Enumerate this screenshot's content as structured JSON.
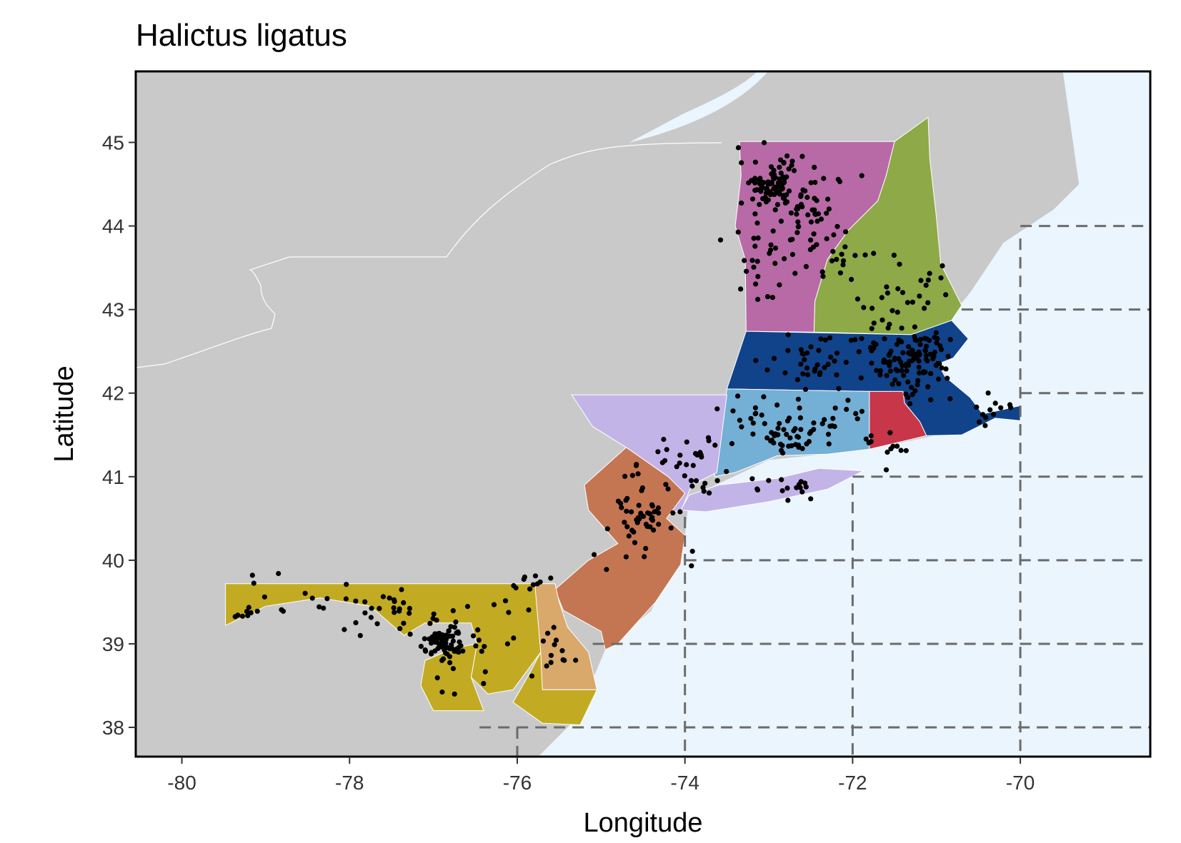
{
  "title": "Halictus ligatus",
  "xlabel": "Longitude",
  "ylabel": "Latitude",
  "xlim": [
    -80.55,
    -68.45
  ],
  "ylim": [
    37.65,
    45.85
  ],
  "x_ticks": [
    {
      "value": -80,
      "label": "-80"
    },
    {
      "value": -78,
      "label": "-78"
    },
    {
      "value": -76,
      "label": "-76"
    },
    {
      "value": -74,
      "label": "-74"
    },
    {
      "value": -72,
      "label": "-72"
    },
    {
      "value": -70,
      "label": "-70"
    }
  ],
  "y_ticks": [
    {
      "value": 38,
      "label": "38"
    },
    {
      "value": 39,
      "label": "39"
    },
    {
      "value": 40,
      "label": "40"
    },
    {
      "value": 41,
      "label": "41"
    },
    {
      "value": 42,
      "label": "42"
    },
    {
      "value": 43,
      "label": "43"
    },
    {
      "value": 44,
      "label": "44"
    },
    {
      "value": 45,
      "label": "45"
    }
  ],
  "colors": {
    "land": "#c9c9c9",
    "water": "#eaf5fd",
    "grid": "#6b6b6b",
    "point": "#000000",
    "vermont": "#b76aa6",
    "new_hampshire": "#8ea947",
    "massachusetts": "#11438a",
    "connecticut": "#74afd5",
    "rhode_island": "#c8364a",
    "new_york": "#c3b4e8",
    "new_jersey": "#c47652",
    "delaware": "#d9a86b",
    "maryland": "#c2ab22"
  },
  "regions": [
    {
      "name": "vermont",
      "coords": [
        [
          -73.35,
          45.01
        ],
        [
          -71.5,
          45.01
        ],
        [
          -71.6,
          44.6
        ],
        [
          -71.7,
          44.3
        ],
        [
          -72.05,
          43.95
        ],
        [
          -72.3,
          43.6
        ],
        [
          -72.45,
          43.1
        ],
        [
          -72.46,
          42.73
        ],
        [
          -73.27,
          42.74
        ],
        [
          -73.28,
          43.6
        ],
        [
          -73.4,
          44.0
        ],
        [
          -73.33,
          44.6
        ],
        [
          -73.35,
          45.01
        ]
      ]
    },
    {
      "name": "new-hampshire",
      "coords": [
        [
          -71.5,
          45.01
        ],
        [
          -71.1,
          45.3
        ],
        [
          -71.08,
          44.8
        ],
        [
          -71.0,
          44.1
        ],
        [
          -70.95,
          43.55
        ],
        [
          -70.7,
          43.05
        ],
        [
          -70.82,
          42.87
        ],
        [
          -71.3,
          42.7
        ],
        [
          -72.46,
          42.73
        ],
        [
          -72.45,
          43.1
        ],
        [
          -72.3,
          43.6
        ],
        [
          -72.05,
          43.95
        ],
        [
          -71.7,
          44.3
        ],
        [
          -71.6,
          44.6
        ],
        [
          -71.5,
          45.01
        ]
      ]
    },
    {
      "name": "massachusetts",
      "coords": [
        [
          -73.5,
          42.05
        ],
        [
          -73.27,
          42.74
        ],
        [
          -71.3,
          42.7
        ],
        [
          -70.82,
          42.87
        ],
        [
          -70.62,
          42.65
        ],
        [
          -70.8,
          42.42
        ],
        [
          -70.98,
          42.35
        ],
        [
          -70.9,
          42.2
        ],
        [
          -70.6,
          41.95
        ],
        [
          -70.45,
          41.75
        ],
        [
          -70.0,
          41.85
        ],
        [
          -70.0,
          41.67
        ],
        [
          -70.3,
          41.7
        ],
        [
          -70.7,
          41.5
        ],
        [
          -71.12,
          41.49
        ],
        [
          -71.2,
          41.66
        ],
        [
          -71.38,
          41.88
        ],
        [
          -71.4,
          42.02
        ],
        [
          -71.8,
          42.02
        ],
        [
          -73.5,
          42.05
        ]
      ]
    },
    {
      "name": "connecticut",
      "coords": [
        [
          -73.5,
          42.05
        ],
        [
          -71.8,
          42.02
        ],
        [
          -71.8,
          41.33
        ],
        [
          -72.3,
          41.27
        ],
        [
          -72.9,
          41.25
        ],
        [
          -73.4,
          41.05
        ],
        [
          -73.65,
          41.0
        ],
        [
          -73.5,
          42.05
        ]
      ]
    },
    {
      "name": "rhode-island",
      "coords": [
        [
          -71.8,
          42.02
        ],
        [
          -71.4,
          42.02
        ],
        [
          -71.38,
          41.88
        ],
        [
          -71.2,
          41.66
        ],
        [
          -71.12,
          41.49
        ],
        [
          -71.5,
          41.4
        ],
        [
          -71.8,
          41.33
        ],
        [
          -71.8,
          42.02
        ]
      ]
    },
    {
      "name": "new-york-hudson",
      "coords": [
        [
          -75.35,
          41.98
        ],
        [
          -73.5,
          41.98
        ],
        [
          -73.62,
          41.05
        ],
        [
          -73.92,
          40.9
        ],
        [
          -74.05,
          40.58
        ],
        [
          -74.22,
          40.6
        ],
        [
          -74.2,
          41.0
        ],
        [
          -74.7,
          41.35
        ],
        [
          -75.1,
          41.6
        ],
        [
          -75.35,
          41.98
        ]
      ]
    },
    {
      "name": "new-york-long-island",
      "coords": [
        [
          -74.05,
          40.6
        ],
        [
          -73.75,
          40.58
        ],
        [
          -73.0,
          40.7
        ],
        [
          -72.3,
          40.85
        ],
        [
          -71.87,
          41.07
        ],
        [
          -72.4,
          41.1
        ],
        [
          -72.9,
          40.98
        ],
        [
          -73.6,
          40.9
        ],
        [
          -73.95,
          40.78
        ],
        [
          -74.05,
          40.6
        ]
      ]
    },
    {
      "name": "new-jersey",
      "coords": [
        [
          -74.7,
          41.35
        ],
        [
          -74.2,
          41.0
        ],
        [
          -74.0,
          40.8
        ],
        [
          -74.22,
          40.5
        ],
        [
          -74.0,
          40.3
        ],
        [
          -74.05,
          39.95
        ],
        [
          -74.35,
          39.5
        ],
        [
          -74.8,
          39.0
        ],
        [
          -74.95,
          38.93
        ],
        [
          -75.0,
          39.15
        ],
        [
          -75.45,
          39.4
        ],
        [
          -75.55,
          39.65
        ],
        [
          -75.15,
          40.0
        ],
        [
          -74.8,
          40.2
        ],
        [
          -75.15,
          40.6
        ],
        [
          -75.2,
          40.9
        ],
        [
          -74.7,
          41.35
        ]
      ]
    },
    {
      "name": "delaware",
      "coords": [
        [
          -75.79,
          39.72
        ],
        [
          -75.55,
          39.72
        ],
        [
          -75.5,
          39.5
        ],
        [
          -75.4,
          39.2
        ],
        [
          -75.15,
          38.9
        ],
        [
          -75.05,
          38.45
        ],
        [
          -75.7,
          38.45
        ],
        [
          -75.79,
          39.72
        ]
      ]
    },
    {
      "name": "maryland-west",
      "coords": [
        [
          -79.48,
          39.72
        ],
        [
          -75.79,
          39.72
        ],
        [
          -75.72,
          38.9
        ],
        [
          -76.05,
          38.45
        ],
        [
          -76.35,
          38.4
        ],
        [
          -76.55,
          38.6
        ],
        [
          -76.48,
          39.0
        ],
        [
          -76.55,
          39.25
        ],
        [
          -77.1,
          39.25
        ],
        [
          -77.35,
          39.1
        ],
        [
          -77.75,
          39.45
        ],
        [
          -78.35,
          39.55
        ],
        [
          -79.0,
          39.45
        ],
        [
          -79.48,
          39.22
        ],
        [
          -79.48,
          39.72
        ]
      ]
    },
    {
      "name": "maryland-south",
      "coords": [
        [
          -76.48,
          39.0
        ],
        [
          -76.55,
          38.6
        ],
        [
          -76.4,
          38.2
        ],
        [
          -77.0,
          38.2
        ],
        [
          -77.15,
          38.5
        ],
        [
          -77.1,
          38.8
        ],
        [
          -76.75,
          38.95
        ],
        [
          -76.48,
          39.0
        ]
      ]
    },
    {
      "name": "maryland-eastern-shore",
      "coords": [
        [
          -75.72,
          38.9
        ],
        [
          -75.7,
          38.45
        ],
        [
          -75.05,
          38.45
        ],
        [
          -75.25,
          38.03
        ],
        [
          -75.7,
          38.05
        ],
        [
          -76.05,
          38.3
        ],
        [
          -75.85,
          38.65
        ],
        [
          -75.72,
          38.9
        ]
      ]
    }
  ],
  "grid_lines": [
    {
      "type": "vertical",
      "value": -76,
      "from": 37.65,
      "to": 38.0
    },
    {
      "type": "vertical",
      "value": -74,
      "from": 37.65,
      "to": 40.52
    },
    {
      "type": "vertical",
      "value": -72,
      "from": 37.65,
      "to": 40.92
    },
    {
      "type": "vertical",
      "value": -70,
      "from": 37.65,
      "to": 43.85
    },
    {
      "type": "horizontal",
      "value": 38,
      "from": -76.45,
      "to": -68.45
    },
    {
      "type": "horizontal",
      "value": 39,
      "from": -75.1,
      "to": -68.45
    },
    {
      "type": "horizontal",
      "value": 40,
      "from": -74.0,
      "to": -68.45
    },
    {
      "type": "horizontal",
      "value": 41,
      "from": -72.0,
      "to": -68.45
    },
    {
      "type": "horizontal",
      "value": 42,
      "from": -70.0,
      "to": -68.45
    },
    {
      "type": "horizontal",
      "value": 43,
      "from": -70.7,
      "to": -68.45
    },
    {
      "type": "horizontal",
      "value": 44,
      "from": -70.0,
      "to": -68.45
    }
  ],
  "clusters": [
    {
      "x": -72.95,
      "y": 44.5,
      "sx": 0.2,
      "sy": 0.15,
      "n": 95
    },
    {
      "x": -72.5,
      "y": 44.2,
      "sx": 0.18,
      "sy": 0.18,
      "n": 30
    },
    {
      "x": -72.9,
      "y": 43.7,
      "sx": 0.3,
      "sy": 0.35,
      "n": 40
    },
    {
      "x": -72.2,
      "y": 43.6,
      "sx": 0.15,
      "sy": 0.2,
      "n": 15
    },
    {
      "x": -71.3,
      "y": 43.2,
      "sx": 0.25,
      "sy": 0.25,
      "n": 20
    },
    {
      "x": -71.7,
      "y": 43.5,
      "sx": 0.35,
      "sy": 0.45,
      "n": 15
    },
    {
      "x": -71.2,
      "y": 42.4,
      "sx": 0.2,
      "sy": 0.2,
      "n": 90
    },
    {
      "x": -72.5,
      "y": 42.4,
      "sx": 0.3,
      "sy": 0.15,
      "n": 35
    },
    {
      "x": -71.6,
      "y": 42.3,
      "sx": 0.2,
      "sy": 0.15,
      "n": 25
    },
    {
      "x": -70.4,
      "y": 41.8,
      "sx": 0.2,
      "sy": 0.1,
      "n": 12
    },
    {
      "x": -72.8,
      "y": 41.45,
      "sx": 0.22,
      "sy": 0.12,
      "n": 35
    },
    {
      "x": -72.3,
      "y": 41.7,
      "sx": 0.2,
      "sy": 0.15,
      "n": 20
    },
    {
      "x": -73.1,
      "y": 41.65,
      "sx": 0.3,
      "sy": 0.2,
      "n": 15
    },
    {
      "x": -71.6,
      "y": 41.4,
      "sx": 0.15,
      "sy": 0.1,
      "n": 12
    },
    {
      "x": -73.9,
      "y": 41.1,
      "sx": 0.25,
      "sy": 0.25,
      "n": 30
    },
    {
      "x": -73.1,
      "y": 40.85,
      "sx": 0.45,
      "sy": 0.08,
      "n": 18
    },
    {
      "x": -74.5,
      "y": 40.5,
      "sx": 0.15,
      "sy": 0.15,
      "n": 30
    },
    {
      "x": -74.6,
      "y": 40.9,
      "sx": 0.25,
      "sy": 0.2,
      "n": 15
    },
    {
      "x": -74.6,
      "y": 40.1,
      "sx": 0.3,
      "sy": 0.2,
      "n": 8
    },
    {
      "x": -76.85,
      "y": 39.0,
      "sx": 0.12,
      "sy": 0.1,
      "n": 70
    },
    {
      "x": -77.5,
      "y": 39.45,
      "sx": 0.35,
      "sy": 0.15,
      "n": 30
    },
    {
      "x": -78.7,
      "y": 39.6,
      "sx": 0.5,
      "sy": 0.1,
      "n": 12
    },
    {
      "x": -79.3,
      "y": 39.4,
      "sx": 0.1,
      "sy": 0.1,
      "n": 8
    },
    {
      "x": -76.3,
      "y": 39.2,
      "sx": 0.3,
      "sy": 0.25,
      "n": 15
    },
    {
      "x": -75.6,
      "y": 38.8,
      "sx": 0.15,
      "sy": 0.25,
      "n": 12
    },
    {
      "x": -75.8,
      "y": 39.75,
      "sx": 0.1,
      "sy": 0.05,
      "n": 10
    },
    {
      "x": -76.9,
      "y": 38.6,
      "sx": 0.2,
      "sy": 0.15,
      "n": 5
    }
  ]
}
